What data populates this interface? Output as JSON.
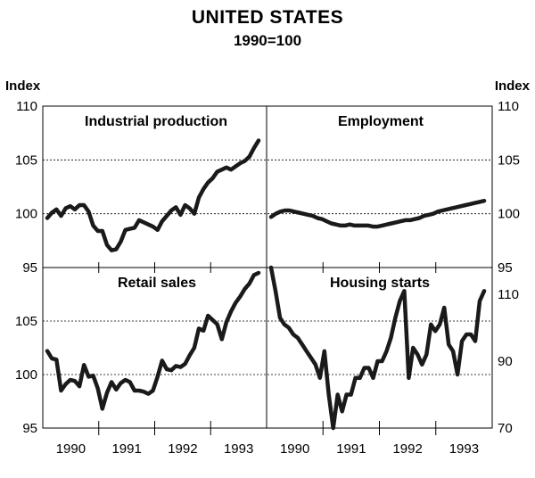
{
  "title": "UNITED STATES",
  "subtitle": "1990=100",
  "chart_data": [
    {
      "type": "line",
      "title": "Industrial production",
      "ylabel": "Index",
      "ylim": [
        95,
        110
      ],
      "yticks": [
        "95",
        "100",
        "105",
        "110"
      ],
      "x_start": 1990.0,
      "x_step": 0.0833,
      "values": [
        99.6,
        100.1,
        100.4,
        99.8,
        100.5,
        100.7,
        100.4,
        100.8,
        100.8,
        100.2,
        98.9,
        98.4,
        98.4,
        97.1,
        96.6,
        96.7,
        97.4,
        98.5,
        98.6,
        98.7,
        99.4,
        99.2,
        99.0,
        98.8,
        98.5,
        99.3,
        99.8,
        100.3,
        100.6,
        99.9,
        100.8,
        100.5,
        100.0,
        101.5,
        102.3,
        102.9,
        103.3,
        103.9,
        104.1,
        104.3,
        104.1,
        104.4,
        104.7,
        104.9,
        105.3,
        106.1,
        106.8
      ]
    },
    {
      "type": "line",
      "title": "Employment",
      "ylabel": "Index",
      "ylim": [
        95,
        110
      ],
      "yticks": [
        "95",
        "100",
        "105",
        "110"
      ],
      "x_start": 1990.0,
      "x_step": 0.0833,
      "values": [
        99.7,
        100.0,
        100.2,
        100.3,
        100.3,
        100.2,
        100.1,
        100.0,
        99.9,
        99.8,
        99.6,
        99.5,
        99.3,
        99.1,
        99.0,
        98.9,
        98.9,
        99.0,
        98.9,
        98.9,
        98.9,
        98.9,
        98.8,
        98.8,
        98.9,
        99.0,
        99.1,
        99.2,
        99.3,
        99.4,
        99.4,
        99.5,
        99.6,
        99.8,
        99.9,
        100.0,
        100.2,
        100.3,
        100.4,
        100.5,
        100.6,
        100.7,
        100.8,
        100.9,
        101.0,
        101.1,
        101.2
      ]
    },
    {
      "type": "line",
      "title": "Retail sales",
      "ylabel": "Index",
      "ylim": [
        95,
        110
      ],
      "yticks": [
        "95",
        "100",
        "105",
        "110"
      ],
      "x_start": 1990.0,
      "x_step": 0.0833,
      "values": [
        102.2,
        101.5,
        101.4,
        98.5,
        99.1,
        99.5,
        99.4,
        98.9,
        100.9,
        99.8,
        99.9,
        98.7,
        96.8,
        98.3,
        99.3,
        98.6,
        99.2,
        99.5,
        99.3,
        98.5,
        98.5,
        98.4,
        98.2,
        98.5,
        99.8,
        101.3,
        100.5,
        100.4,
        100.8,
        100.7,
        101.0,
        101.8,
        102.5,
        104.3,
        104.1,
        105.5,
        105.1,
        104.7,
        103.3,
        104.9,
        105.9,
        106.7,
        107.3,
        108.0,
        108.5,
        109.3,
        109.5
      ]
    },
    {
      "type": "line",
      "title": "Housing starts",
      "ylabel": "Index",
      "ylim": [
        70,
        118
      ],
      "yticks": [
        "70",
        "90",
        "110"
      ],
      "x_start": 1990.0,
      "x_step": 0.0833,
      "values": [
        118,
        111,
        103,
        101,
        100,
        98,
        97,
        95,
        93,
        91,
        89,
        85,
        93,
        80,
        70,
        80,
        75,
        80,
        80,
        85,
        85,
        88,
        88,
        85,
        90,
        90,
        93,
        97,
        103,
        108,
        111,
        85,
        94,
        92,
        89,
        92,
        101,
        99,
        101,
        106,
        95,
        93,
        86,
        96,
        98,
        98,
        96,
        108,
        111
      ]
    }
  ],
  "x_axis": {
    "labels": [
      "1990",
      "1991",
      "1992",
      "1993"
    ]
  },
  "index_label_left": "Index",
  "index_label_right": "Index"
}
